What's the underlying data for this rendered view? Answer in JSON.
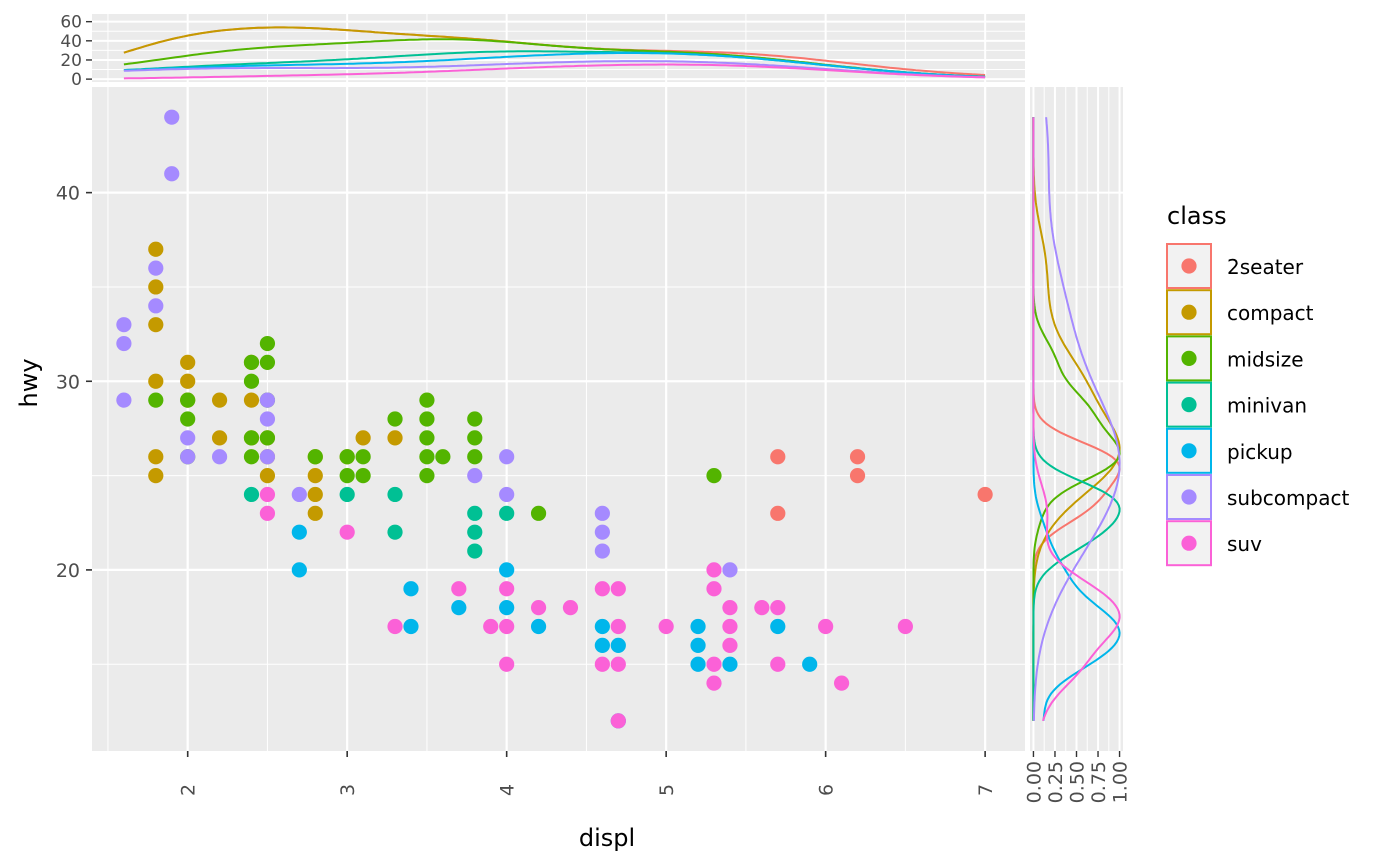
{
  "chart_data": {
    "type": "scatter",
    "xlabel": "displ",
    "ylabel": "hwy",
    "xlim": [
      1.4,
      7.25
    ],
    "ylim": [
      10.4,
      45.6
    ],
    "x_ticks": [
      "2",
      "3",
      "4",
      "5",
      "6",
      "7"
    ],
    "y_ticks": [
      "20",
      "30",
      "40"
    ],
    "grid": true,
    "legend": {
      "title": "class",
      "position": "right",
      "entries": [
        "2seater",
        "compact",
        "midsize",
        "minivan",
        "pickup",
        "subcompact",
        "suv"
      ]
    },
    "colors": {
      "2seater": "#F8766D",
      "compact": "#C49A00",
      "midsize": "#53B400",
      "minivan": "#00C094",
      "pickup": "#00B6EB",
      "subcompact": "#A58AFF",
      "suv": "#FB61D7",
      "panel": "#EBEBEB",
      "grid": "#FFFFFF"
    },
    "series": [
      {
        "name": "2seater",
        "points": [
          [
            5.7,
            26
          ],
          [
            5.7,
            23
          ],
          [
            6.2,
            26
          ],
          [
            6.2,
            25
          ],
          [
            7.0,
            24
          ]
        ]
      },
      {
        "name": "compact",
        "points": [
          [
            1.8,
            37
          ],
          [
            1.8,
            35
          ],
          [
            1.8,
            33
          ],
          [
            1.8,
            30
          ],
          [
            1.8,
            26
          ],
          [
            1.8,
            25
          ],
          [
            2.0,
            31
          ],
          [
            2.0,
            30
          ],
          [
            2.0,
            29
          ],
          [
            2.2,
            29
          ],
          [
            2.2,
            27
          ],
          [
            2.4,
            31
          ],
          [
            2.4,
            29
          ],
          [
            2.4,
            27
          ],
          [
            2.5,
            27
          ],
          [
            2.5,
            26
          ],
          [
            2.5,
            25
          ],
          [
            2.8,
            26
          ],
          [
            2.8,
            25
          ],
          [
            2.8,
            24
          ],
          [
            2.8,
            23
          ],
          [
            3.0,
            26
          ],
          [
            3.1,
            27
          ],
          [
            3.3,
            27
          ]
        ]
      },
      {
        "name": "midsize",
        "points": [
          [
            1.8,
            29
          ],
          [
            2.0,
            29
          ],
          [
            2.0,
            28
          ],
          [
            2.0,
            26
          ],
          [
            2.4,
            31
          ],
          [
            2.4,
            30
          ],
          [
            2.4,
            27
          ],
          [
            2.4,
            26
          ],
          [
            2.5,
            32
          ],
          [
            2.5,
            31
          ],
          [
            2.5,
            29
          ],
          [
            2.5,
            27
          ],
          [
            2.8,
            26
          ],
          [
            3.0,
            26
          ],
          [
            3.0,
            25
          ],
          [
            3.1,
            26
          ],
          [
            3.1,
            25
          ],
          [
            3.3,
            28
          ],
          [
            3.5,
            29
          ],
          [
            3.5,
            28
          ],
          [
            3.5,
            27
          ],
          [
            3.5,
            26
          ],
          [
            3.5,
            25
          ],
          [
            3.6,
            26
          ],
          [
            3.8,
            28
          ],
          [
            3.8,
            27
          ],
          [
            3.8,
            26
          ],
          [
            4.2,
            23
          ],
          [
            5.3,
            25
          ]
        ]
      },
      {
        "name": "minivan",
        "points": [
          [
            2.4,
            24
          ],
          [
            3.0,
            24
          ],
          [
            3.3,
            24
          ],
          [
            3.3,
            22
          ],
          [
            3.8,
            23
          ],
          [
            3.8,
            22
          ],
          [
            3.8,
            21
          ],
          [
            4.0,
            23
          ]
        ]
      },
      {
        "name": "pickup",
        "points": [
          [
            2.7,
            22
          ],
          [
            2.7,
            20
          ],
          [
            3.4,
            19
          ],
          [
            3.4,
            17
          ],
          [
            3.7,
            18
          ],
          [
            4.0,
            20
          ],
          [
            4.0,
            18
          ],
          [
            4.2,
            17
          ],
          [
            4.6,
            17
          ],
          [
            4.6,
            16
          ],
          [
            4.7,
            16
          ],
          [
            4.7,
            12
          ],
          [
            5.2,
            17
          ],
          [
            5.2,
            16
          ],
          [
            5.2,
            15
          ],
          [
            5.4,
            15
          ],
          [
            5.7,
            17
          ],
          [
            5.9,
            15
          ]
        ]
      },
      {
        "name": "subcompact",
        "points": [
          [
            1.6,
            33
          ],
          [
            1.6,
            32
          ],
          [
            1.6,
            29
          ],
          [
            1.8,
            36
          ],
          [
            1.8,
            34
          ],
          [
            1.9,
            44
          ],
          [
            1.9,
            41
          ],
          [
            2.0,
            27
          ],
          [
            2.0,
            26
          ],
          [
            2.2,
            26
          ],
          [
            2.5,
            29
          ],
          [
            2.5,
            28
          ],
          [
            2.5,
            26
          ],
          [
            2.7,
            24
          ],
          [
            3.8,
            25
          ],
          [
            4.0,
            26
          ],
          [
            4.0,
            24
          ],
          [
            4.6,
            23
          ],
          [
            4.6,
            22
          ],
          [
            4.6,
            21
          ],
          [
            5.4,
            20
          ]
        ]
      },
      {
        "name": "suv",
        "points": [
          [
            2.5,
            24
          ],
          [
            2.5,
            23
          ],
          [
            3.0,
            22
          ],
          [
            3.3,
            17
          ],
          [
            3.7,
            19
          ],
          [
            3.9,
            17
          ],
          [
            4.0,
            19
          ],
          [
            4.0,
            17
          ],
          [
            4.0,
            15
          ],
          [
            4.2,
            18
          ],
          [
            4.4,
            18
          ],
          [
            4.6,
            19
          ],
          [
            4.6,
            15
          ],
          [
            4.7,
            19
          ],
          [
            4.7,
            17
          ],
          [
            4.7,
            15
          ],
          [
            4.7,
            12
          ],
          [
            5.0,
            17
          ],
          [
            5.3,
            20
          ],
          [
            5.3,
            19
          ],
          [
            5.3,
            15
          ],
          [
            5.3,
            14
          ],
          [
            5.4,
            18
          ],
          [
            5.4,
            17
          ],
          [
            5.4,
            16
          ],
          [
            5.6,
            18
          ],
          [
            5.7,
            18
          ],
          [
            5.7,
            15
          ],
          [
            6.0,
            17
          ],
          [
            6.1,
            14
          ],
          [
            6.5,
            17
          ]
        ]
      }
    ],
    "marginal_top": {
      "type": "stacked-density",
      "y_ticks": [
        "0",
        "20",
        "40",
        "60"
      ],
      "ylim": [
        -3,
        68
      ]
    },
    "marginal_right": {
      "type": "scaled-density",
      "x_ticks": [
        "0.00",
        "0.25",
        "0.50",
        "0.75",
        "1.00"
      ],
      "xlim": [
        -0.04,
        1.04
      ]
    }
  }
}
